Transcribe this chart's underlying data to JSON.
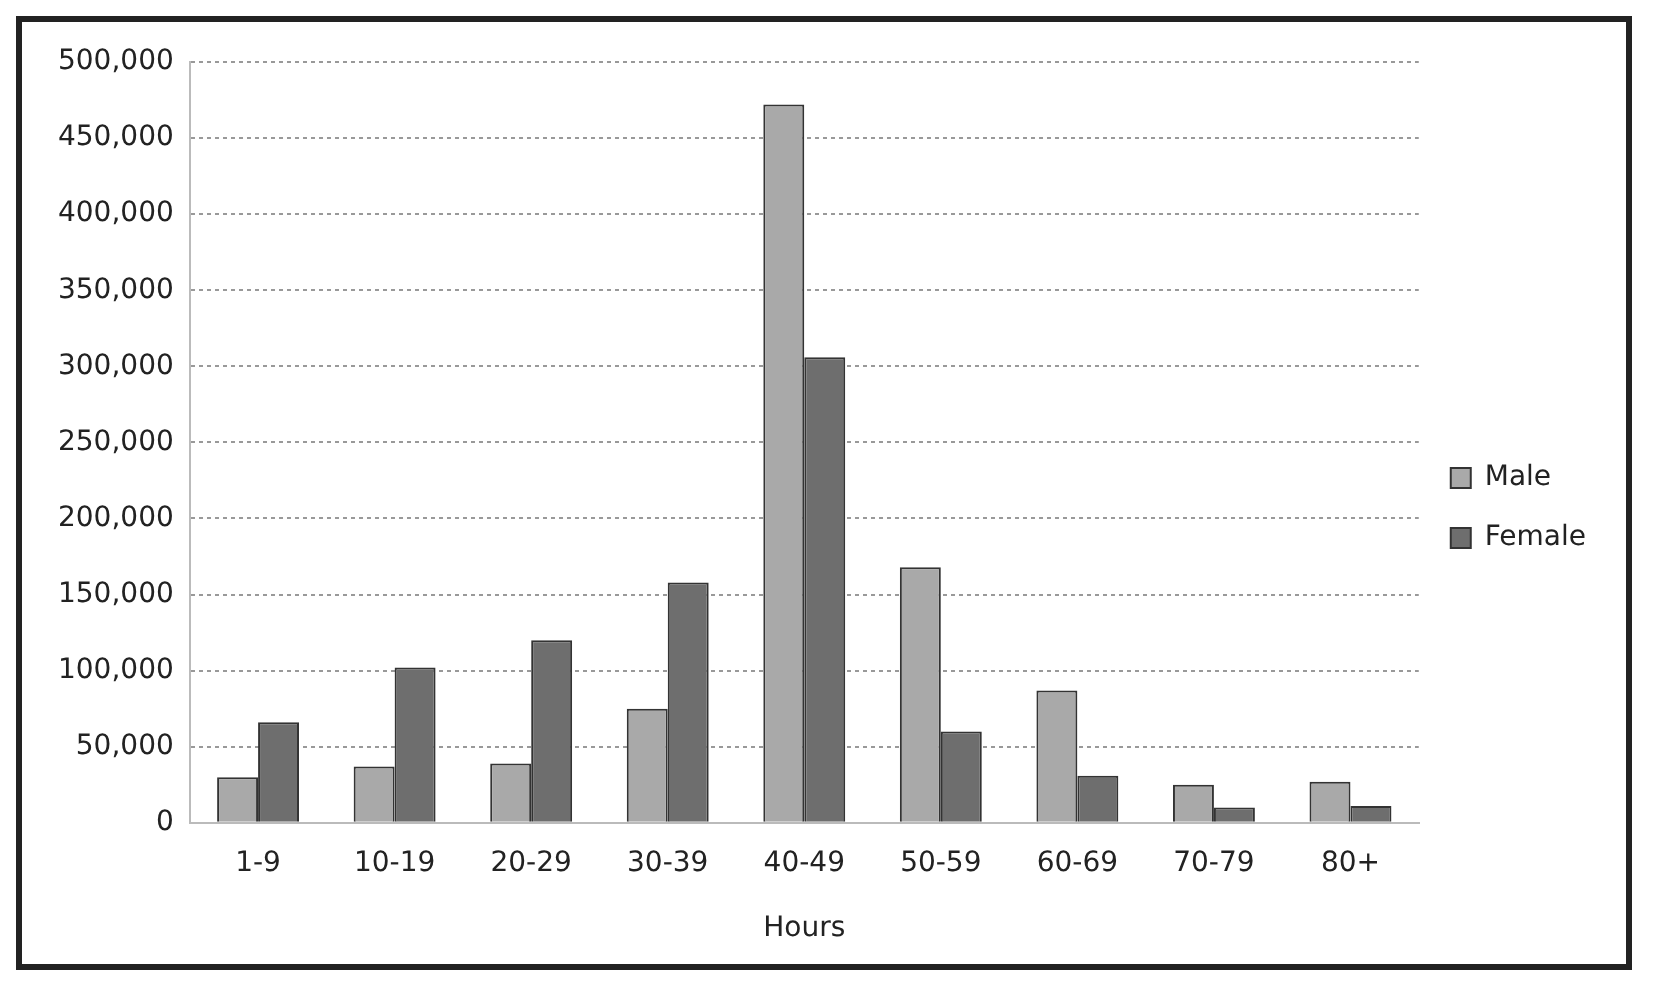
{
  "chart_data": {
    "type": "bar",
    "xlabel": "Hours",
    "categories": [
      "1-9",
      "10-19",
      "20-29",
      "30-39",
      "40-49",
      "50-59",
      "60-69",
      "70-79",
      "80+"
    ],
    "series": [
      {
        "name": "Male",
        "color": "#a9a9a9",
        "values": [
          30000,
          37000,
          39000,
          75000,
          472000,
          168000,
          87000,
          25000,
          27000
        ]
      },
      {
        "name": "Female",
        "color": "#6e6e6e",
        "values": [
          66000,
          102000,
          120000,
          158000,
          306000,
          60000,
          31000,
          10000,
          11000
        ]
      }
    ],
    "ylim": [
      0,
      500000
    ],
    "yticks": [
      0,
      {
        "value": 50000,
        "label": "50,000"
      },
      {
        "value": 100000,
        "label": "100,000"
      },
      {
        "value": 150000,
        "label": "150,000"
      },
      {
        "value": 200000,
        "label": "200,000"
      },
      {
        "value": 250000,
        "label": "250,000"
      },
      {
        "value": 300000,
        "label": "300,000"
      },
      {
        "value": 350000,
        "label": "350,000"
      },
      {
        "value": 400000,
        "label": "400,000"
      },
      {
        "value": 450000,
        "label": "450,000"
      },
      {
        "value": 500000,
        "label": "500,000"
      }
    ],
    "grid": "y",
    "legend": "right"
  }
}
